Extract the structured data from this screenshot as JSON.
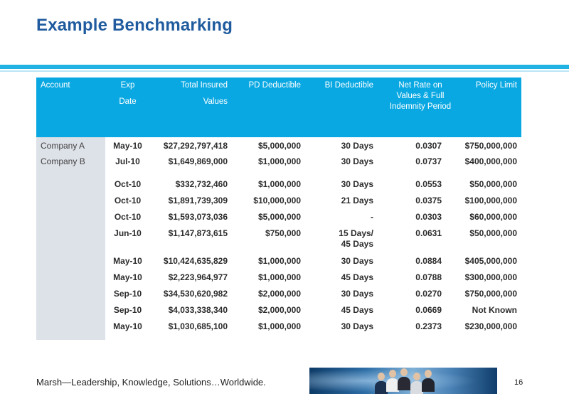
{
  "title": "Example Benchmarking",
  "colors": {
    "title": "#1f5b9e",
    "header_bg": "#0aa8e2",
    "rule": "#1fb2e3",
    "account_bg": "#dde1e8"
  },
  "table": {
    "headers": {
      "account": "Account",
      "exp_line1": "Exp",
      "exp_line2": "Date",
      "tiv_line1": "Total Insured",
      "tiv_line2": "Values",
      "pd": "PD Deductible",
      "bi": "BI Deductible",
      "rate": "Net Rate on Values & Full Indemnity Period",
      "limit": "Policy Limit"
    },
    "rows": [
      {
        "account": "Company A",
        "exp": "May-10",
        "tiv": "$27,292,797,418",
        "pd": "$5,000,000",
        "bi": "30 Days",
        "rate": "0.0307",
        "limit": "$750,000,000"
      },
      {
        "account": "Company B",
        "exp": "Jul-10",
        "tiv": "$1,649,869,000",
        "pd": "$1,000,000",
        "bi": "30 Days",
        "rate": "0.0737",
        "limit": "$400,000,000"
      },
      {
        "account": "",
        "exp": "Oct-10",
        "tiv": "$332,732,460",
        "pd": "$1,000,000",
        "bi": "30 Days",
        "rate": "0.0553",
        "limit": "$50,000,000"
      },
      {
        "account": "",
        "exp": "Oct-10",
        "tiv": "$1,891,739,309",
        "pd": "$10,000,000",
        "bi": "21 Days",
        "rate": "0.0375",
        "limit": "$100,000,000"
      },
      {
        "account": "",
        "exp": "Oct-10",
        "tiv": "$1,593,073,036",
        "pd": "$5,000,000",
        "bi": "-",
        "rate": "0.0303",
        "limit": "$60,000,000"
      },
      {
        "account": "",
        "exp": "Jun-10",
        "tiv": "$1,147,873,615",
        "pd": "$750,000",
        "bi": "15 Days/ 45 Days",
        "rate": "0.0631",
        "limit": "$50,000,000"
      },
      {
        "account": "",
        "exp": "May-10",
        "tiv": "$10,424,635,829",
        "pd": "$1,000,000",
        "bi": "30 Days",
        "rate": "0.0884",
        "limit": "$405,000,000"
      },
      {
        "account": "",
        "exp": "May-10",
        "tiv": "$2,223,964,977",
        "pd": "$1,000,000",
        "bi": "45 Days",
        "rate": "0.0788",
        "limit": "$300,000,000"
      },
      {
        "account": "",
        "exp": "Sep-10",
        "tiv": "$34,530,620,982",
        "pd": "$2,000,000",
        "bi": "30 Days",
        "rate": "0.0270",
        "limit": "$750,000,000"
      },
      {
        "account": "",
        "exp": "Sep-10",
        "tiv": "$4,033,338,340",
        "pd": "$2,000,000",
        "bi": "45 Days",
        "rate": "0.0669",
        "limit": "Not Known"
      },
      {
        "account": "",
        "exp": "May-10",
        "tiv": "$1,030,685,100",
        "pd": "$1,000,000",
        "bi": "30 Days",
        "rate": "0.2373",
        "limit": "$230,000,000"
      }
    ]
  },
  "footer": {
    "tagline": "Marsh—Leadership, Knowledge, Solutions…Worldwide.",
    "page_number": "16"
  }
}
